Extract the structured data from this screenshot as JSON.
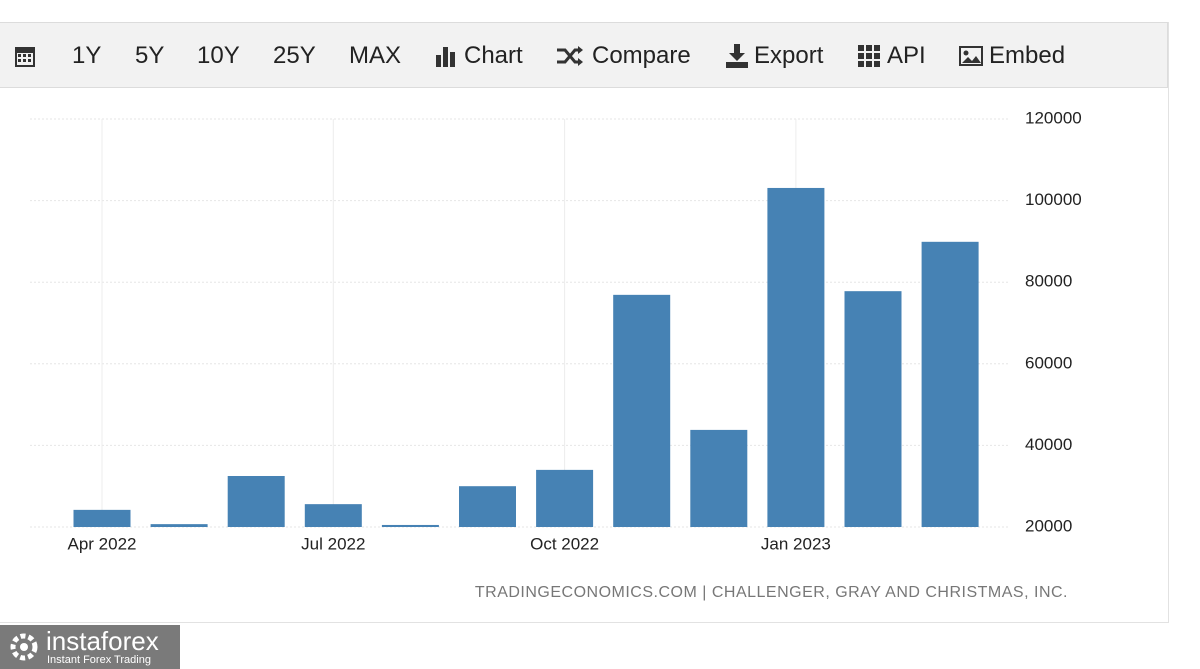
{
  "toolbar": {
    "buttons": [
      "1Y",
      "5Y",
      "10Y",
      "25Y",
      "MAX",
      "Chart",
      "Compare",
      "Export",
      "API",
      "Embed"
    ]
  },
  "chart_data": {
    "type": "bar",
    "categories": [
      "Apr 2022",
      null,
      null,
      "Jul 2022",
      null,
      null,
      "Oct 2022",
      null,
      null,
      "Jan 2023",
      null,
      null
    ],
    "values": [
      24200,
      20700,
      32500,
      25600,
      20500,
      30000,
      34000,
      76900,
      43800,
      103100,
      77800,
      89900
    ],
    "color": "#4682b4",
    "ylim": [
      20000,
      120000
    ],
    "yticks": [
      20000,
      40000,
      60000,
      80000,
      100000,
      120000
    ],
    "grid": true
  },
  "source": "TRADINGECONOMICS.COM | CHALLENGER, GRAY AND CHRISTMAS, INC.",
  "watermark": {
    "brand": "instaforex",
    "tagline": "Instant Forex Trading"
  }
}
